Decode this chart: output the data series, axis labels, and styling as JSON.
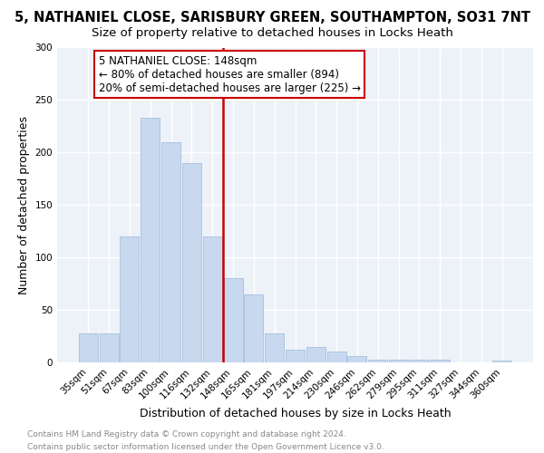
{
  "title_line1": "5, NATHANIEL CLOSE, SARISBURY GREEN, SOUTHAMPTON, SO31 7NT",
  "title_line2": "Size of property relative to detached houses in Locks Heath",
  "xlabel": "Distribution of detached houses by size in Locks Heath",
  "ylabel": "Number of detached properties",
  "categories": [
    "35sqm",
    "51sqm",
    "67sqm",
    "83sqm",
    "100sqm",
    "116sqm",
    "132sqm",
    "148sqm",
    "165sqm",
    "181sqm",
    "197sqm",
    "214sqm",
    "230sqm",
    "246sqm",
    "262sqm",
    "279sqm",
    "295sqm",
    "311sqm",
    "327sqm",
    "344sqm",
    "360sqm"
  ],
  "values": [
    28,
    28,
    120,
    233,
    210,
    190,
    120,
    80,
    65,
    28,
    12,
    15,
    10,
    6,
    3,
    3,
    3,
    3,
    0,
    0,
    2
  ],
  "bar_color": "#c8d9ef",
  "bar_edge_color": "#9ab8d8",
  "vline_index": 7,
  "vline_color": "#cc0000",
  "annotation_line1": "5 NATHANIEL CLOSE: 148sqm",
  "annotation_line2": "← 80% of detached houses are smaller (894)",
  "annotation_line3": "20% of semi-detached houses are larger (225) →",
  "annotation_box_color": "#cc0000",
  "background_color": "#edf2f9",
  "grid_color": "#ffffff",
  "ylim": [
    0,
    300
  ],
  "yticks": [
    0,
    50,
    100,
    150,
    200,
    250,
    300
  ],
  "footer_text": "Contains HM Land Registry data © Crown copyright and database right 2024.\nContains public sector information licensed under the Open Government Licence v3.0.",
  "title_fontsize": 10.5,
  "subtitle_fontsize": 9.5,
  "axis_label_fontsize": 9,
  "tick_fontsize": 7.5,
  "annotation_fontsize": 8.5,
  "footer_fontsize": 6.5
}
